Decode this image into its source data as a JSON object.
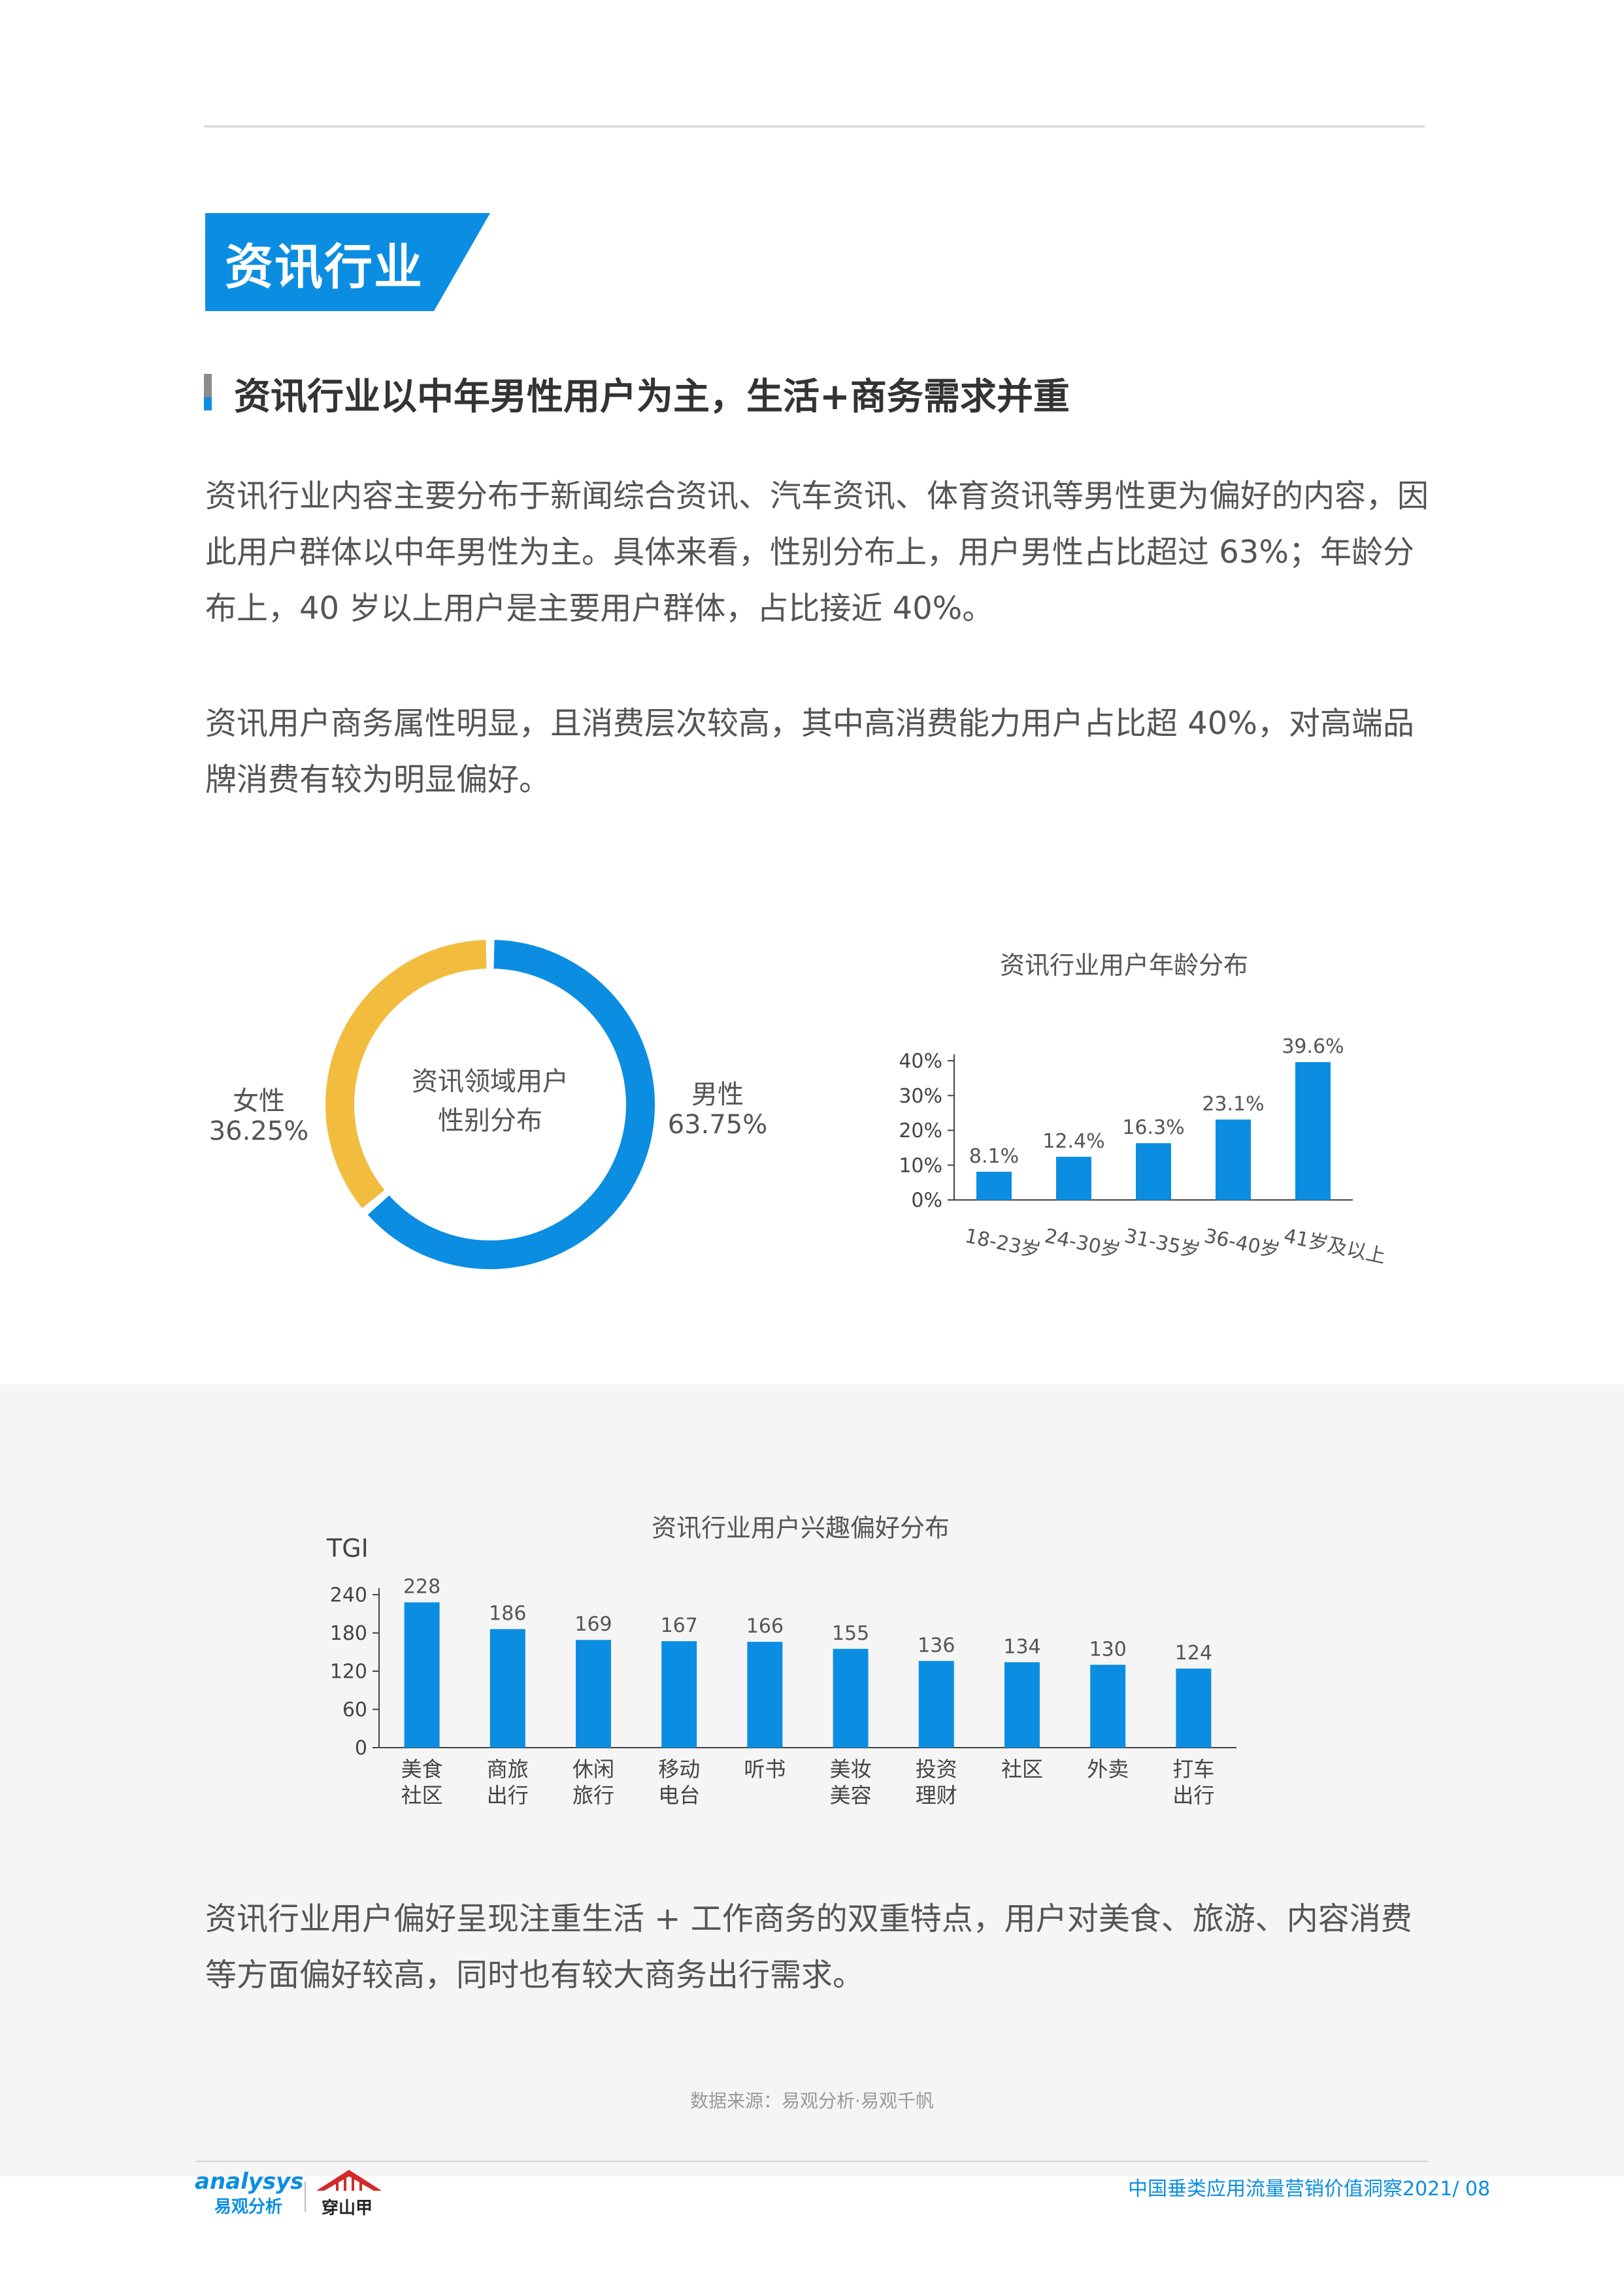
{
  "section_title": "资讯行业",
  "subtitle": "资讯行业以中年男性用户为主，生活+商务需求并重",
  "paragraphs": {
    "p1": "资讯行业内容主要分布于新闻综合资讯、汽车资讯、体育资讯等男性更为偏好的内容，因此用户群体以中年男性为主。具体来看，性别分布上，用户男性占比超过 63%；年龄分布上，40 岁以上用户是主要用户群体，占比接近 40%。",
    "p2": "资讯用户商务属性明显，且消费层次较高，其中高消费能力用户占比超 40%，对高端品牌消费有较为明显偏好。",
    "p3": "资讯行业用户偏好呈现注重生活 + 工作商务的双重特点，用户对美食、旅游、内容消费等方面偏好较高，同时也有较大商务出行需求。"
  },
  "gender_chart": {
    "center_line1": "资讯领域用户",
    "center_line2": "性别分布",
    "female_label": "女性",
    "female_value": "36.25%",
    "male_label": "男性",
    "male_value": "63.75%"
  },
  "age_chart_title": "资讯行业用户年龄分布",
  "interest_chart_title": "资讯行业用户兴趣偏好分布",
  "chart_data": [
    {
      "type": "pie",
      "categories": [
        "男性",
        "女性"
      ],
      "values": [
        63.75,
        36.25
      ],
      "colors": [
        "#0b8ee2",
        "#f2bc3f"
      ]
    },
    {
      "type": "bar",
      "title": "资讯行业用户年龄分布",
      "categories": [
        "18-23岁",
        "24-30岁",
        "31-35岁",
        "36-40岁",
        "41岁及以上"
      ],
      "values": [
        8.1,
        12.4,
        16.3,
        23.1,
        39.6
      ],
      "value_labels": [
        "8.1%",
        "12.4%",
        "16.3%",
        "23.1%",
        "39.6%"
      ],
      "ylim": [
        0,
        40
      ],
      "yticks": [
        "0%",
        "10%",
        "20%",
        "30%",
        "40%"
      ],
      "ytick_values": [
        0,
        10,
        20,
        30,
        40
      ],
      "color": "#0b8ee2"
    },
    {
      "type": "bar",
      "title": "资讯行业用户兴趣偏好分布",
      "ylabel": "TGI",
      "categories": [
        [
          "美食",
          "社区"
        ],
        [
          "商旅",
          "出行"
        ],
        [
          "休闲",
          "旅行"
        ],
        [
          "移动",
          "电台"
        ],
        [
          "听书"
        ],
        [
          "美妆",
          "美容"
        ],
        [
          "投资",
          "理财"
        ],
        [
          "社区"
        ],
        [
          "外卖"
        ],
        [
          "打车",
          "出行"
        ]
      ],
      "values": [
        228,
        186,
        169,
        167,
        166,
        155,
        136,
        134,
        130,
        124
      ],
      "value_labels": [
        "228",
        "186",
        "169",
        "167",
        "166",
        "155",
        "136",
        "134",
        "130",
        "124"
      ],
      "ylim": [
        0,
        240
      ],
      "yticks": [
        "0",
        "60",
        "120",
        "180",
        "240"
      ],
      "ytick_values": [
        0,
        60,
        120,
        180,
        240
      ],
      "color": "#0b8ee2"
    }
  ],
  "source_note": "数据来源：易观分析·易观千帆",
  "footer": {
    "logo_analysys": "analysys",
    "logo_analysys_cn": "易观分析",
    "logo_partner_cn": "穿山甲",
    "report_title": "中国垂类应用流量营销价值洞察2021/ 08"
  }
}
